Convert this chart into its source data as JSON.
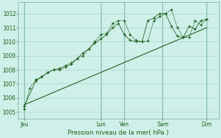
{
  "xlabel": "Pression niveau de la mer( hPa )",
  "background_color": "#cef0e8",
  "plot_bg_color": "#cef0e8",
  "grid_color": "#a0ccc0",
  "line_color": "#1a5c1a",
  "day_label_color": "#1a5c1a",
  "ylim": [
    1004.5,
    1012.8
  ],
  "yticks": [
    1005,
    1006,
    1007,
    1008,
    1009,
    1010,
    1011,
    1012
  ],
  "day_labels": [
    "Jeu",
    "Lun",
    "Ven",
    "Sam",
    "Dim"
  ],
  "day_positions": [
    0.0,
    13.0,
    17.0,
    23.5,
    31.0
  ],
  "xlim": [
    -1.0,
    33.0
  ],
  "total_points": 32,
  "series1_x": [
    0,
    1,
    2,
    3,
    4,
    5,
    6,
    7,
    8,
    9,
    10,
    11,
    12,
    13,
    14,
    15,
    16,
    17,
    18,
    19,
    20,
    21,
    22,
    23,
    24,
    25,
    26,
    27,
    28,
    29,
    30,
    31
  ],
  "series1_y": [
    1005.2,
    1006.7,
    1007.3,
    1007.5,
    1007.8,
    1008.0,
    1008.1,
    1008.3,
    1008.5,
    1008.8,
    1009.0,
    1009.5,
    1010.0,
    1010.5,
    1010.6,
    1011.3,
    1011.5,
    1011.5,
    1010.5,
    1010.1,
    1010.0,
    1010.05,
    1011.5,
    1011.8,
    1012.0,
    1012.3,
    1011.0,
    1010.3,
    1010.3,
    1011.5,
    1011.2,
    1011.6
  ],
  "series2_x": [
    0,
    2,
    3,
    4,
    5,
    6,
    7,
    8,
    9,
    10,
    11,
    12,
    13,
    14,
    15,
    16,
    17,
    18,
    19,
    20,
    21,
    22,
    23,
    24,
    25,
    26,
    27,
    28,
    29,
    30,
    31
  ],
  "series2_y": [
    1005.4,
    1007.2,
    1007.5,
    1007.8,
    1008.0,
    1008.0,
    1008.2,
    1008.4,
    1008.8,
    1009.2,
    1009.5,
    1009.9,
    1010.2,
    1010.5,
    1011.0,
    1011.3,
    1010.5,
    1010.1,
    1010.0,
    1010.0,
    1011.5,
    1011.7,
    1012.0,
    1012.0,
    1011.1,
    1010.4,
    1010.3,
    1011.1,
    1010.9,
    1011.5,
    1011.6
  ],
  "trend_x": [
    0,
    31
  ],
  "trend_y": [
    1005.5,
    1011.0
  ]
}
